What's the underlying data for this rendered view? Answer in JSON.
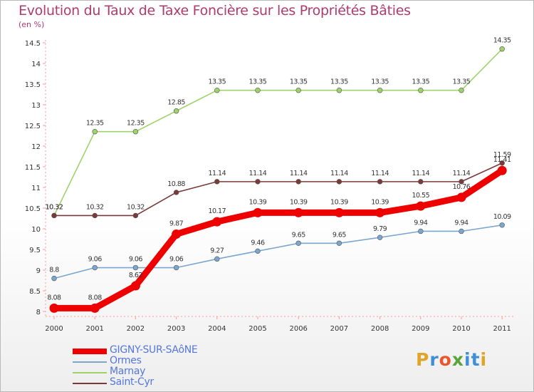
{
  "chart_data": {
    "type": "line",
    "title": "Evolution du Taux de Taxe Foncière sur les Propriétés Bâties",
    "subtitle": "(en %)",
    "categories": [
      "2000",
      "2001",
      "2002",
      "2003",
      "2004",
      "2005",
      "2006",
      "2007",
      "2008",
      "2009",
      "2010",
      "2011"
    ],
    "yticks": [
      "8",
      "8.5",
      "9",
      "9.5",
      "10",
      "10.5",
      "11",
      "11.5",
      "12",
      "12.5",
      "13",
      "13.5",
      "14",
      "14.5"
    ],
    "ylim": [
      8,
      14.5
    ],
    "series": [
      {
        "name": "GIGNY-SUR-SAôNE",
        "color": "#ee0000",
        "emphasis": true,
        "values": [
          8.08,
          8.08,
          8.62,
          9.87,
          10.17,
          10.39,
          10.39,
          10.39,
          10.39,
          10.55,
          10.76,
          11.41
        ],
        "labels": [
          "8.08",
          "8.08",
          "8.62",
          "9.87",
          "10.17",
          "10.39",
          "10.39",
          "10.39",
          "10.39",
          "10.55",
          "10.76",
          "11.41"
        ]
      },
      {
        "name": "Ormes",
        "color": "#7ba7cf",
        "values": [
          8.8,
          9.06,
          9.06,
          9.06,
          9.27,
          9.46,
          9.65,
          9.65,
          9.79,
          9.94,
          9.94,
          10.09
        ],
        "labels": [
          "8.8",
          "9.06",
          "9.06",
          "9.06",
          "9.27",
          "9.46",
          "9.65",
          "9.65",
          "9.79",
          "9.94",
          "9.94",
          "10.09"
        ]
      },
      {
        "name": "Marnay",
        "color": "#9ed36a",
        "values": [
          10.32,
          12.35,
          12.35,
          12.85,
          13.35,
          13.35,
          13.35,
          13.35,
          13.35,
          13.35,
          13.35,
          14.35
        ],
        "labels": [
          "10.32",
          "12.35",
          "12.35",
          "12.85",
          "13.35",
          "13.35",
          "13.35",
          "13.35",
          "13.35",
          "13.35",
          "13.35",
          "14.35"
        ]
      },
      {
        "name": "Saint-Cyr",
        "color": "#7b3a3a",
        "values": [
          10.32,
          10.32,
          10.32,
          10.88,
          11.14,
          11.14,
          11.14,
          11.14,
          11.14,
          11.14,
          11.14,
          11.59
        ],
        "labels": [
          "10.32",
          "10.32",
          "10.32",
          "10.88",
          "11.14",
          "11.14",
          "11.14",
          "11.14",
          "11.14",
          "11.14",
          "11.14",
          "11.59"
        ]
      }
    ]
  },
  "legend": {
    "items": [
      "GIGNY-SUR-SAôNE",
      "Ormes",
      "Marnay",
      "Saint-Cyr"
    ]
  },
  "logo": {
    "text": "Proxiti",
    "letters": [
      "P",
      "r",
      "o",
      "x",
      "i",
      "t",
      "i"
    ],
    "colors": [
      "#e2a426",
      "#3f8fd8",
      "#e8582a",
      "#5aa43a",
      "#3f8fd8",
      "#3f8fd8",
      "#e2a426"
    ]
  }
}
